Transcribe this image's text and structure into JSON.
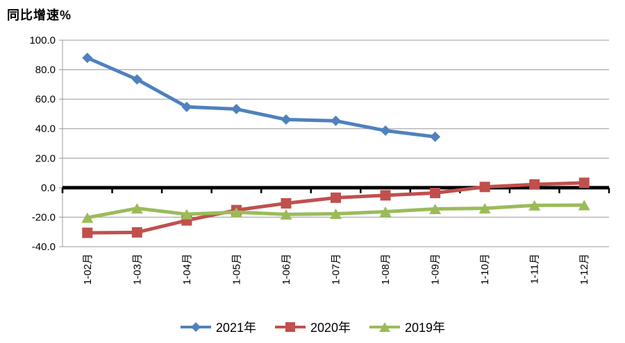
{
  "page": {
    "background": "#ffffff"
  },
  "chart_data": {
    "type": "line",
    "title": "同比增速%",
    "categories": [
      "1-02月",
      "1-03月",
      "1-04月",
      "1-05月",
      "1-06月",
      "1-07月",
      "1-08月",
      "1-09月",
      "1-10月",
      "1-11月",
      "1-12月"
    ],
    "series": [
      {
        "name": "2021年",
        "color": "#4F81BD",
        "marker": "diamond",
        "values": [
          88.0,
          73.4,
          54.8,
          53.3,
          46.2,
          45.3,
          38.7,
          34.5,
          null,
          null,
          null
        ]
      },
      {
        "name": "2020年",
        "color": "#C0504D",
        "marker": "square",
        "values": [
          -30.6,
          -30.3,
          -22.2,
          -15.2,
          -10.6,
          -6.8,
          -5.2,
          -3.6,
          0.5,
          2.2,
          3.3
        ]
      },
      {
        "name": "2019年",
        "color": "#9BBB59",
        "marker": "triangle",
        "values": [
          -20.3,
          -14.0,
          -18.0,
          -16.6,
          -18.1,
          -17.7,
          -16.3,
          -14.4,
          -14.0,
          -12.0,
          -11.8
        ]
      }
    ],
    "y_axis": {
      "min": -40,
      "max": 100,
      "step": 20,
      "tick_labels": [
        "100.0",
        "80.0",
        "60.0",
        "40.0",
        "20.0",
        "0.0",
        "-20.0",
        "-40.0"
      ]
    },
    "x_axis": {
      "label_rotation_deg": 90
    },
    "legend_position": "bottom",
    "grid": true,
    "colors": {
      "gridline": "#999999",
      "zero_line": "#000000",
      "axis_line": "#999999",
      "tick": "#000000"
    }
  }
}
